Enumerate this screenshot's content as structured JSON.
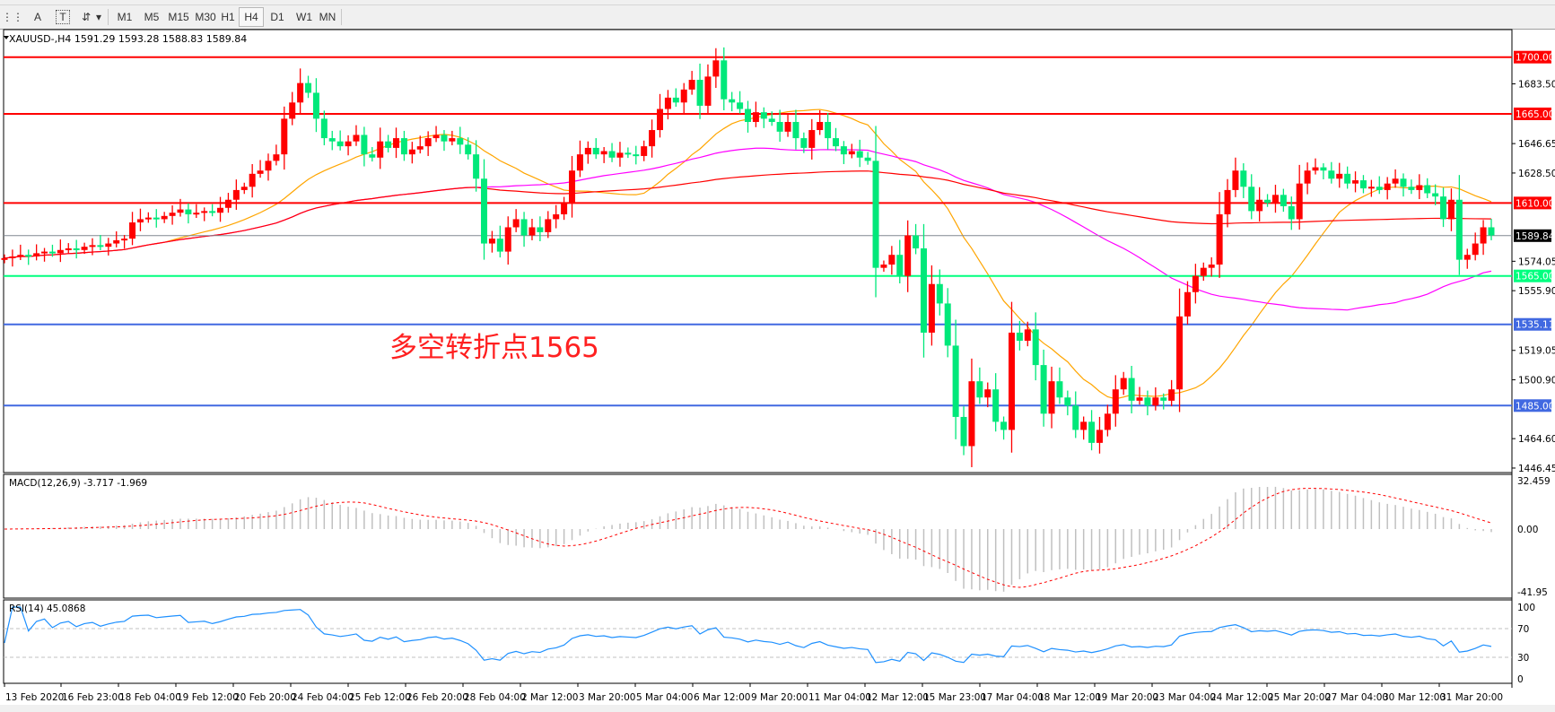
{
  "toolbar": {
    "tools": [
      {
        "name": "period-separator-icon",
        "glyph": "⋮⋮"
      },
      {
        "name": "text-tool",
        "glyph": "A"
      },
      {
        "name": "text-label-tool",
        "glyph": "T"
      },
      {
        "name": "arrows-tool",
        "glyph": "⇵"
      },
      {
        "name": "dropdown-arrow",
        "glyph": "▾"
      }
    ],
    "timeframes": [
      "M1",
      "M5",
      "M15",
      "M30",
      "H1",
      "H4",
      "D1",
      "W1",
      "MN"
    ],
    "selected_timeframe": "H4"
  },
  "chart": {
    "symbol_line": "XAUUSD-,H4  1591.29 1593.28 1588.83 1589.84",
    "annotation": "多空转折点1565",
    "current_price": 1589.84,
    "current_price_label": "1589.84",
    "price_axis_labels": [
      "1683.50",
      "1646.65",
      "1628.50",
      "1574.05",
      "1555.90",
      "1519.05",
      "1500.90",
      "1464.60",
      "1446.45"
    ],
    "levels": [
      {
        "price": 1700.0,
        "label": "1700.00",
        "color": "#ff0000"
      },
      {
        "price": 1665.0,
        "label": "1665.00",
        "color": "#ff0000"
      },
      {
        "price": 1610.0,
        "label": "1610.00",
        "color": "#ff0000"
      },
      {
        "price": 1565.0,
        "label": "1565.00",
        "color": "#00ff7f"
      },
      {
        "price": 1535.11,
        "label": "1535.11",
        "color": "#4169e1"
      },
      {
        "price": 1485.0,
        "label": "1485.00",
        "color": "#4169e1"
      }
    ],
    "colors": {
      "bull": "#ff0000",
      "bear": "#00e87a",
      "ma_fast": "#ffa500",
      "ma_mid": "#ff00ff",
      "ma_slow": "#ff0000",
      "price_line": "#808890",
      "rsi": "#1e90ff",
      "macd_hist": "#c0c0c0",
      "macd_signal": "#ff0000"
    },
    "closes": [
      1576,
      1577,
      1578,
      1577,
      1579,
      1580,
      1579,
      1581,
      1582,
      1581,
      1583,
      1584,
      1583,
      1585,
      1587,
      1588,
      1598,
      1600,
      1601,
      1600,
      1602,
      1604,
      1606,
      1603,
      1604,
      1605,
      1604,
      1607,
      1612,
      1618,
      1620,
      1628,
      1630,
      1636,
      1640,
      1662,
      1672,
      1684,
      1678,
      1662,
      1650,
      1648,
      1645,
      1648,
      1652,
      1640,
      1638,
      1648,
      1644,
      1650,
      1640,
      1643,
      1645,
      1650,
      1652,
      1648,
      1650,
      1646,
      1640,
      1625,
      1585,
      1588,
      1580,
      1595,
      1600,
      1590,
      1595,
      1592,
      1600,
      1603,
      1610,
      1630,
      1640,
      1644,
      1640,
      1642,
      1638,
      1641,
      1640,
      1639,
      1645,
      1655,
      1668,
      1675,
      1672,
      1680,
      1686,
      1670,
      1688,
      1698,
      1674,
      1672,
      1668,
      1660,
      1666,
      1662,
      1660,
      1654,
      1660,
      1650,
      1644,
      1655,
      1660,
      1650,
      1645,
      1640,
      1642,
      1638,
      1636,
      1570,
      1572,
      1578,
      1565,
      1590,
      1582,
      1530,
      1560,
      1548,
      1522,
      1478,
      1460,
      1500,
      1490,
      1495,
      1475,
      1470,
      1530,
      1525,
      1532,
      1510,
      1480,
      1500,
      1490,
      1485,
      1470,
      1475,
      1462,
      1470,
      1480,
      1495,
      1502,
      1488,
      1490,
      1485,
      1490,
      1488,
      1495,
      1540,
      1555,
      1565,
      1570,
      1572,
      1603,
      1618,
      1630,
      1620,
      1605,
      1612,
      1610,
      1615,
      1608,
      1600,
      1622,
      1630,
      1632,
      1630,
      1625,
      1628,
      1622,
      1624,
      1619,
      1620,
      1618,
      1622,
      1625,
      1620,
      1618,
      1621,
      1616,
      1614,
      1600,
      1612,
      1575,
      1578,
      1585,
      1595,
      1590
    ],
    "time_labels": [
      "13 Feb 2020",
      "16 Feb 23:00",
      "18 Feb 04:00",
      "19 Feb 12:00",
      "20 Feb 20:00",
      "24 Feb 04:00",
      "25 Feb 12:00",
      "26 Feb 20:00",
      "28 Feb 04:00",
      "2 Mar 12:00",
      "3 Mar 20:00",
      "5 Mar 04:00",
      "6 Mar 12:00",
      "9 Mar 20:00",
      "11 Mar 04:00",
      "12 Mar 12:00",
      "15 Mar 23:00",
      "17 Mar 04:00",
      "18 Mar 12:00",
      "19 Mar 20:00",
      "23 Mar 04:00",
      "24 Mar 12:00",
      "25 Mar 20:00",
      "27 Mar 04:00",
      "30 Mar 12:00",
      "31 Mar 20:00"
    ]
  },
  "macd": {
    "label": "MACD(12,26,9) -3.717 -1.969",
    "axis_labels": [
      "32.459",
      "0.00",
      "-41.95"
    ],
    "axis_values": [
      32.459,
      0,
      -41.95
    ]
  },
  "rsi": {
    "label": "RSI(14) 45.0868",
    "axis_labels": [
      "100",
      "70",
      "30",
      "0"
    ],
    "axis_values": [
      100,
      70,
      30,
      0
    ]
  }
}
